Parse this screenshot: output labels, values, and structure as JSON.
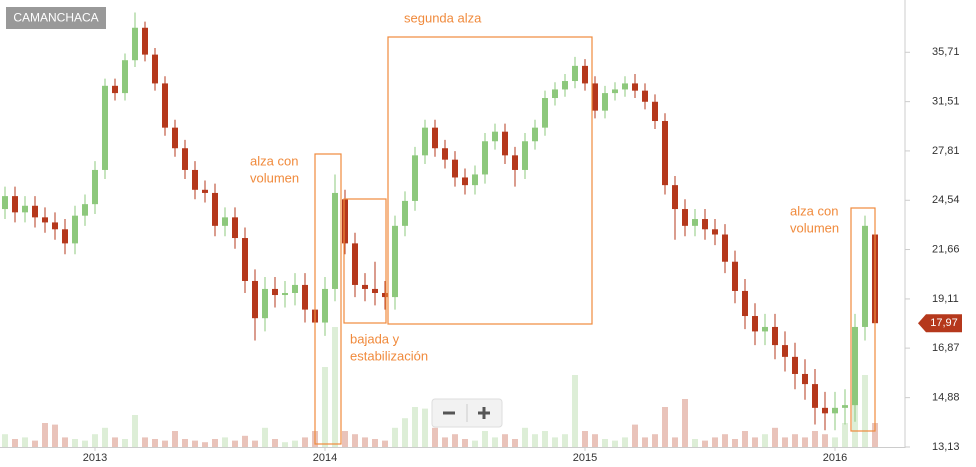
{
  "chart_data": {
    "type": "candlestick",
    "title": "CAMANCHACA",
    "categories": [
      null,
      null,
      null,
      null,
      null,
      null,
      null,
      null,
      null,
      "2013",
      null,
      null,
      null,
      null,
      null,
      null,
      null,
      null,
      null,
      null,
      null,
      null,
      null,
      null,
      null,
      null,
      null,
      null,
      null,
      null,
      null,
      null,
      "2014",
      null,
      null,
      null,
      null,
      null,
      null,
      null,
      null,
      null,
      null,
      null,
      null,
      null,
      null,
      null,
      null,
      null,
      null,
      null,
      null,
      null,
      null,
      null,
      null,
      null,
      "2015",
      null,
      null,
      null,
      null,
      null,
      null,
      null,
      null,
      null,
      null,
      null,
      null,
      null,
      null,
      null,
      null,
      null,
      null,
      null,
      null,
      null,
      null,
      null,
      null,
      "2016",
      null,
      null,
      null,
      null
    ],
    "open": [
      24.0,
      24.8,
      23.8,
      24.2,
      23.5,
      23.2,
      22.8,
      22.0,
      23.6,
      24.3,
      26.5,
      32.8,
      32.2,
      35.0,
      38.0,
      35.5,
      33.0,
      29.5,
      28.0,
      26.5,
      25.2,
      25.0,
      23.0,
      23.5,
      22.3,
      20.0,
      18.2,
      19.6,
      19.3,
      19.4,
      19.8,
      18.6,
      18.0,
      19.6,
      24.6,
      22.0,
      19.8,
      19.6,
      19.4,
      19.2,
      23.0,
      24.5,
      27.5,
      29.5,
      28.0,
      27.2,
      26.0,
      25.5,
      26.2,
      28.5,
      29.2,
      27.5,
      26.5,
      28.5,
      29.5,
      31.8,
      32.5,
      33.2,
      34.5,
      33.0,
      30.8,
      32.2,
      32.5,
      33.0,
      32.4,
      31.5,
      30.0,
      25.5,
      24.0,
      23.0,
      23.4,
      22.8,
      22.5,
      21.0,
      19.5,
      18.3,
      17.6,
      17.8,
      17.0,
      16.5,
      15.8,
      15.4,
      14.5,
      14.3,
      14.5,
      14.6,
      17.8,
      22.5
    ],
    "high": [
      25.4,
      25.4,
      24.8,
      24.8,
      24.1,
      23.8,
      23.4,
      24.2,
      24.9,
      27.1,
      33.4,
      33.4,
      35.6,
      39.5,
      38.6,
      36.1,
      33.6,
      30.1,
      28.6,
      27.1,
      25.8,
      25.6,
      24.1,
      24.1,
      22.9,
      20.6,
      20.2,
      20.2,
      20.0,
      20.4,
      20.4,
      19.2,
      20.2,
      26.2,
      25.2,
      22.6,
      20.4,
      21.0,
      20.0,
      23.6,
      25.1,
      28.1,
      30.1,
      30.1,
      28.6,
      27.8,
      26.6,
      26.8,
      29.1,
      29.8,
      29.8,
      28.1,
      29.1,
      30.1,
      32.4,
      33.1,
      33.8,
      35.3,
      35.1,
      33.6,
      32.8,
      33.1,
      33.6,
      33.8,
      33.0,
      32.1,
      30.6,
      26.1,
      24.6,
      24.0,
      24.0,
      23.4,
      23.1,
      21.6,
      20.1,
      18.9,
      18.4,
      18.4,
      17.6,
      17.1,
      16.4,
      16.0,
      15.1,
      15.1,
      15.2,
      18.4,
      23.6,
      23.1
    ],
    "low": [
      23.4,
      23.2,
      23.2,
      22.9,
      22.6,
      22.2,
      21.4,
      21.4,
      23.0,
      23.7,
      25.9,
      31.6,
      31.6,
      34.4,
      34.9,
      32.4,
      28.9,
      27.4,
      25.9,
      24.6,
      24.4,
      22.4,
      22.4,
      21.7,
      19.4,
      17.2,
      17.6,
      18.7,
      18.7,
      18.8,
      18.0,
      17.2,
      17.4,
      19.0,
      21.4,
      19.2,
      19.0,
      18.8,
      18.6,
      18.6,
      22.4,
      23.9,
      26.9,
      27.4,
      26.6,
      25.4,
      24.9,
      24.9,
      25.6,
      27.9,
      26.9,
      25.4,
      25.9,
      27.9,
      28.9,
      31.2,
      31.9,
      32.6,
      32.4,
      30.2,
      30.2,
      31.6,
      31.9,
      31.8,
      30.9,
      29.4,
      24.9,
      22.2,
      22.4,
      22.4,
      22.2,
      21.9,
      20.4,
      18.9,
      17.7,
      17.0,
      17.0,
      16.4,
      15.9,
      15.2,
      14.8,
      13.9,
      13.7,
      13.7,
      13.9,
      14.0,
      17.2,
      17.4
    ],
    "close": [
      24.8,
      23.8,
      24.2,
      23.5,
      23.2,
      22.8,
      22.0,
      23.6,
      24.3,
      26.5,
      32.8,
      32.2,
      35.0,
      38.0,
      35.5,
      33.0,
      29.5,
      28.0,
      26.5,
      25.2,
      25.0,
      23.0,
      23.5,
      22.3,
      20.0,
      18.2,
      19.6,
      19.3,
      19.4,
      19.8,
      18.6,
      18.0,
      19.6,
      25.0,
      22.0,
      19.8,
      19.6,
      19.4,
      19.2,
      23.0,
      24.5,
      27.5,
      29.5,
      28.0,
      27.2,
      26.0,
      25.5,
      26.2,
      28.5,
      29.2,
      27.5,
      26.5,
      28.5,
      29.5,
      31.8,
      32.5,
      33.2,
      34.5,
      33.0,
      30.8,
      32.2,
      32.5,
      33.0,
      32.4,
      31.5,
      30.0,
      25.5,
      24.0,
      23.0,
      23.4,
      22.8,
      22.5,
      21.0,
      19.5,
      18.3,
      17.6,
      17.8,
      17.0,
      16.5,
      15.8,
      15.4,
      14.5,
      14.3,
      14.5,
      14.6,
      17.8,
      23.0,
      17.97
    ],
    "volume": [
      8,
      5,
      6,
      4,
      15,
      14,
      6,
      5,
      4,
      8,
      12,
      6,
      5,
      20,
      6,
      5,
      4,
      10,
      5,
      4,
      3,
      5,
      6,
      4,
      7,
      4,
      12,
      5,
      3,
      4,
      6,
      10,
      50,
      75,
      10,
      8,
      6,
      5,
      4,
      12,
      18,
      25,
      24,
      12,
      6,
      8,
      5,
      4,
      10,
      6,
      8,
      5,
      12,
      8,
      10,
      6,
      8,
      45,
      10,
      8,
      5,
      4,
      6,
      14,
      6,
      8,
      25,
      6,
      30,
      5,
      4,
      6,
      8,
      5,
      10,
      6,
      8,
      12,
      6,
      8,
      6,
      10,
      8,
      6,
      15,
      30,
      45,
      15
    ],
    "volume_lim": [
      0,
      100
    ],
    "up_color": "#8dc87c",
    "down_color": "#b5381c",
    "ylim": [
      13.13,
      40.77
    ],
    "log_scale": true,
    "grid": false,
    "yticks": [
      {
        "value": 13.13,
        "label": "13,13"
      },
      {
        "value": 14.88,
        "label": "14,88"
      },
      {
        "value": 16.87,
        "label": "16,87"
      },
      {
        "value": 19.11,
        "label": "19,11"
      },
      {
        "value": 21.66,
        "label": "21,66"
      },
      {
        "value": 24.54,
        "label": "24,54"
      },
      {
        "value": 27.81,
        "label": "27,81"
      },
      {
        "value": 31.51,
        "label": "31,51"
      },
      {
        "value": 35.71,
        "label": "35,71"
      }
    ],
    "last_price": {
      "value": 17.97,
      "label": "17,97"
    },
    "annotations": [
      {
        "lines": [
          "alza con",
          "volumen"
        ]
      },
      {
        "lines": [
          "bajada y",
          "estabilización"
        ]
      },
      {
        "lines": [
          "segunda alza"
        ]
      },
      {
        "lines": [
          "alza con",
          "volumen"
        ]
      }
    ]
  }
}
